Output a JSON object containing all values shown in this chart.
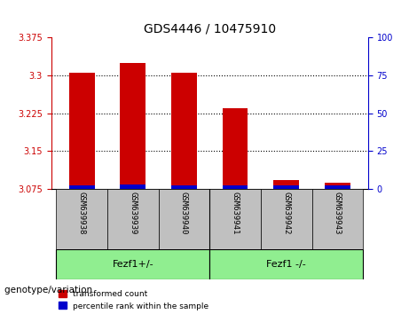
{
  "title": "GDS4446 / 10475910",
  "samples": [
    "GSM639938",
    "GSM639939",
    "GSM639940",
    "GSM639941",
    "GSM639942",
    "GSM639943"
  ],
  "red_values": [
    3.305,
    3.325,
    3.305,
    3.235,
    3.092,
    3.087
  ],
  "blue_values": [
    3.082,
    3.083,
    3.082,
    3.081,
    3.082,
    3.081
  ],
  "base": 3.075,
  "ylim_left": [
    3.075,
    3.375
  ],
  "ylim_right": [
    0,
    100
  ],
  "yticks_left": [
    3.075,
    3.15,
    3.225,
    3.3,
    3.375
  ],
  "yticks_right": [
    0,
    25,
    50,
    75,
    100
  ],
  "ytick_labels_left": [
    "3.075",
    "3.15",
    "3.225",
    "3.3",
    "3.375"
  ],
  "ytick_labels_right": [
    "0",
    "25",
    "50",
    "75",
    "100"
  ],
  "groups": [
    {
      "label": "Fezf1+/-",
      "samples": [
        "GSM639938",
        "GSM639939",
        "GSM639940"
      ],
      "color": "#90EE90"
    },
    {
      "label": "Fezf1 -/-",
      "samples": [
        "GSM639941",
        "GSM639942",
        "GSM639943"
      ],
      "color": "#90EE90"
    }
  ],
  "bar_width": 0.5,
  "red_color": "#CC0000",
  "blue_color": "#0000CC",
  "grid_color": "#000000",
  "left_axis_color": "#CC0000",
  "right_axis_color": "#0000CC",
  "bg_color": "#FFFFFF",
  "plot_bg": "#FFFFFF",
  "tick_bg": "#C0C0C0",
  "legend_red": "transformed count",
  "legend_blue": "percentile rank within the sample",
  "group_label": "genotype/variation",
  "group_bg": "#90EE90"
}
